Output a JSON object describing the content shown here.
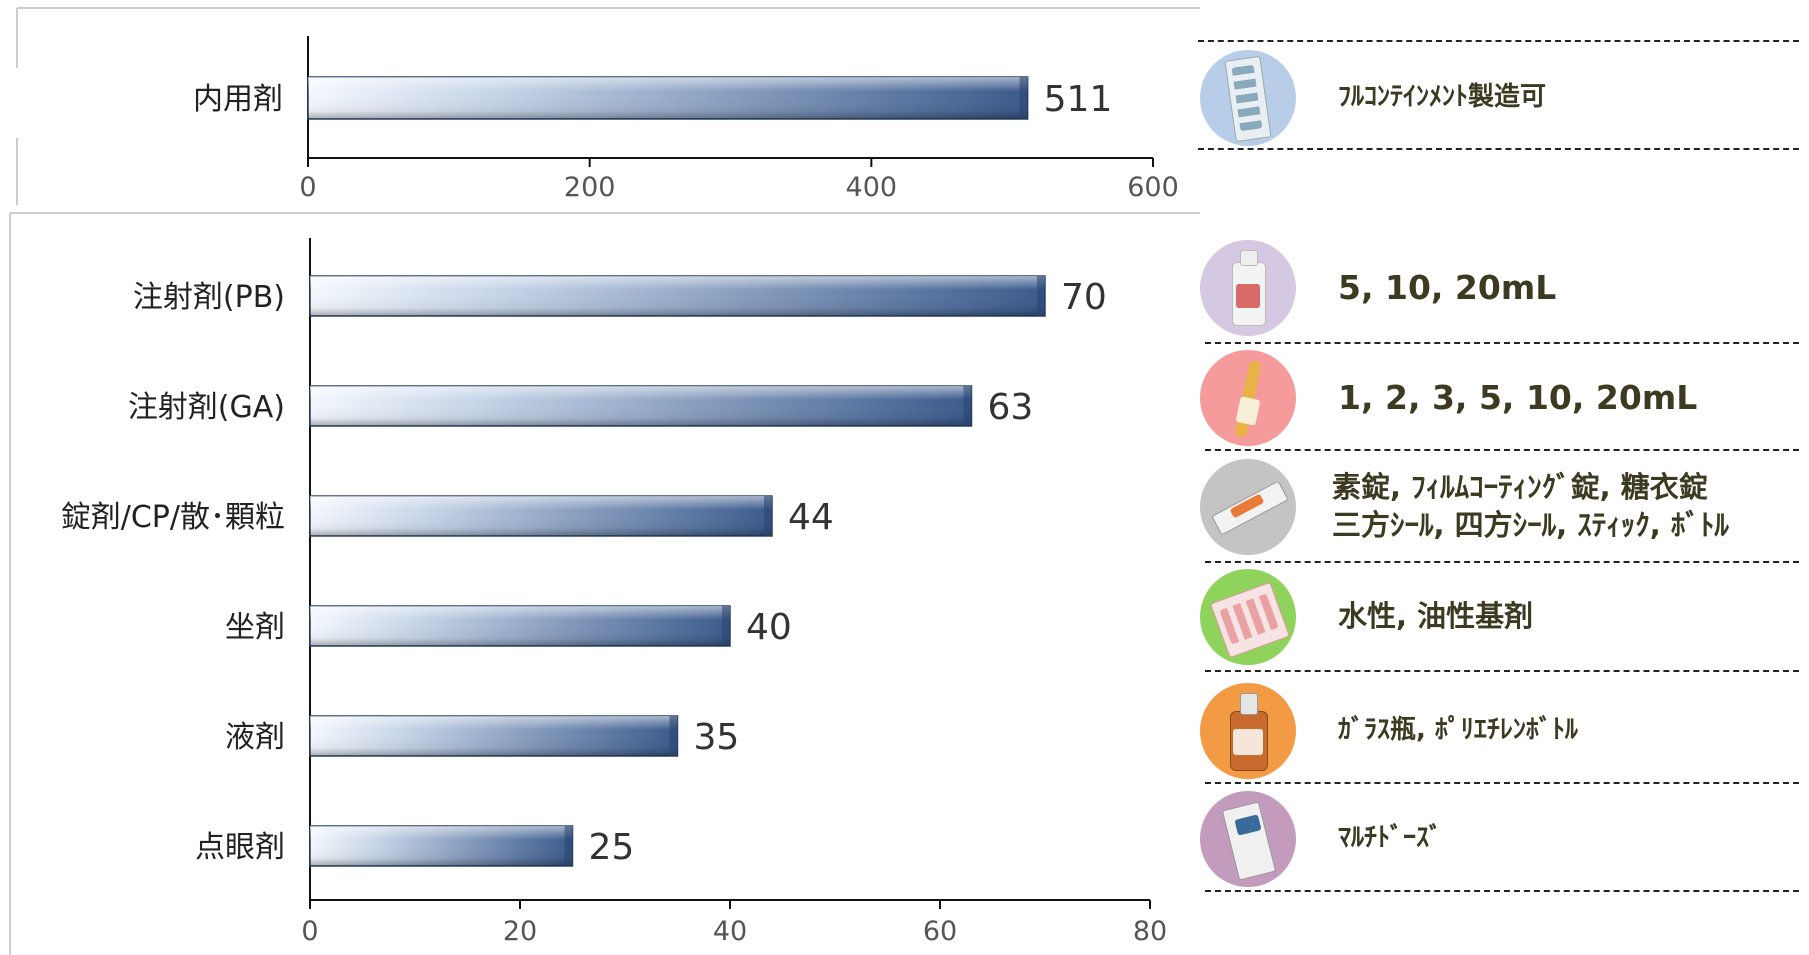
{
  "chart_data": [
    {
      "type": "bar",
      "orientation": "horizontal",
      "categories": [
        "内用剤"
      ],
      "values": [
        511
      ],
      "xlim": [
        0,
        600
      ],
      "ticks": [
        0,
        200,
        400,
        600
      ],
      "grid": false,
      "bar_color": "#3f5f8f"
    },
    {
      "type": "bar",
      "orientation": "horizontal",
      "categories": [
        "注射剤(PB)",
        "注射剤(GA)",
        "錠剤/CP/散･顆粒",
        "坐剤",
        "液剤",
        "点眼剤"
      ],
      "values": [
        70,
        63,
        44,
        40,
        35,
        25
      ],
      "xlim": [
        0,
        80
      ],
      "ticks": [
        0,
        20,
        40,
        60,
        80
      ],
      "grid": false,
      "bar_color": "#3f5f8f"
    }
  ],
  "side_panel": [
    {
      "icon": "blister-pack-icon",
      "color": "#b8cde8",
      "lines": [
        "ﾌﾙｺﾝﾃｲﾝﾒﾝﾄ製造可"
      ]
    },
    {
      "icon": "plastic-bottle-icon",
      "color": "#d4c8e2",
      "lines": [
        "5, 10, 20mL"
      ]
    },
    {
      "icon": "ampoule-icon",
      "color": "#f59b9b",
      "lines": [
        "1, 2, 3, 5, 10, 20mL"
      ]
    },
    {
      "icon": "tablet-strip-icon",
      "color": "#c4c4c4",
      "lines": [
        "素錠, ﾌｨﾙﾑｺｰﾃｨﾝｸﾞ錠, 糖衣錠",
        "三方ｼｰﾙ, 四方ｼｰﾙ, ｽﾃｨｯｸ, ﾎﾞﾄﾙ"
      ]
    },
    {
      "icon": "suppository-pack-icon",
      "color": "#8fd35c",
      "lines": [
        "水性, 油性基剤"
      ]
    },
    {
      "icon": "glass-bottle-icon",
      "color": "#f39a44",
      "lines": [
        "ｶﾞﾗｽ瓶, ﾎﾟﾘｴﾁﾚﾝﾎﾞﾄﾙ"
      ]
    },
    {
      "icon": "eye-drop-bottle-icon",
      "color": "#c39bbd",
      "lines": [
        "ﾏﾙﾁﾄﾞｰｽﾞ"
      ]
    }
  ]
}
